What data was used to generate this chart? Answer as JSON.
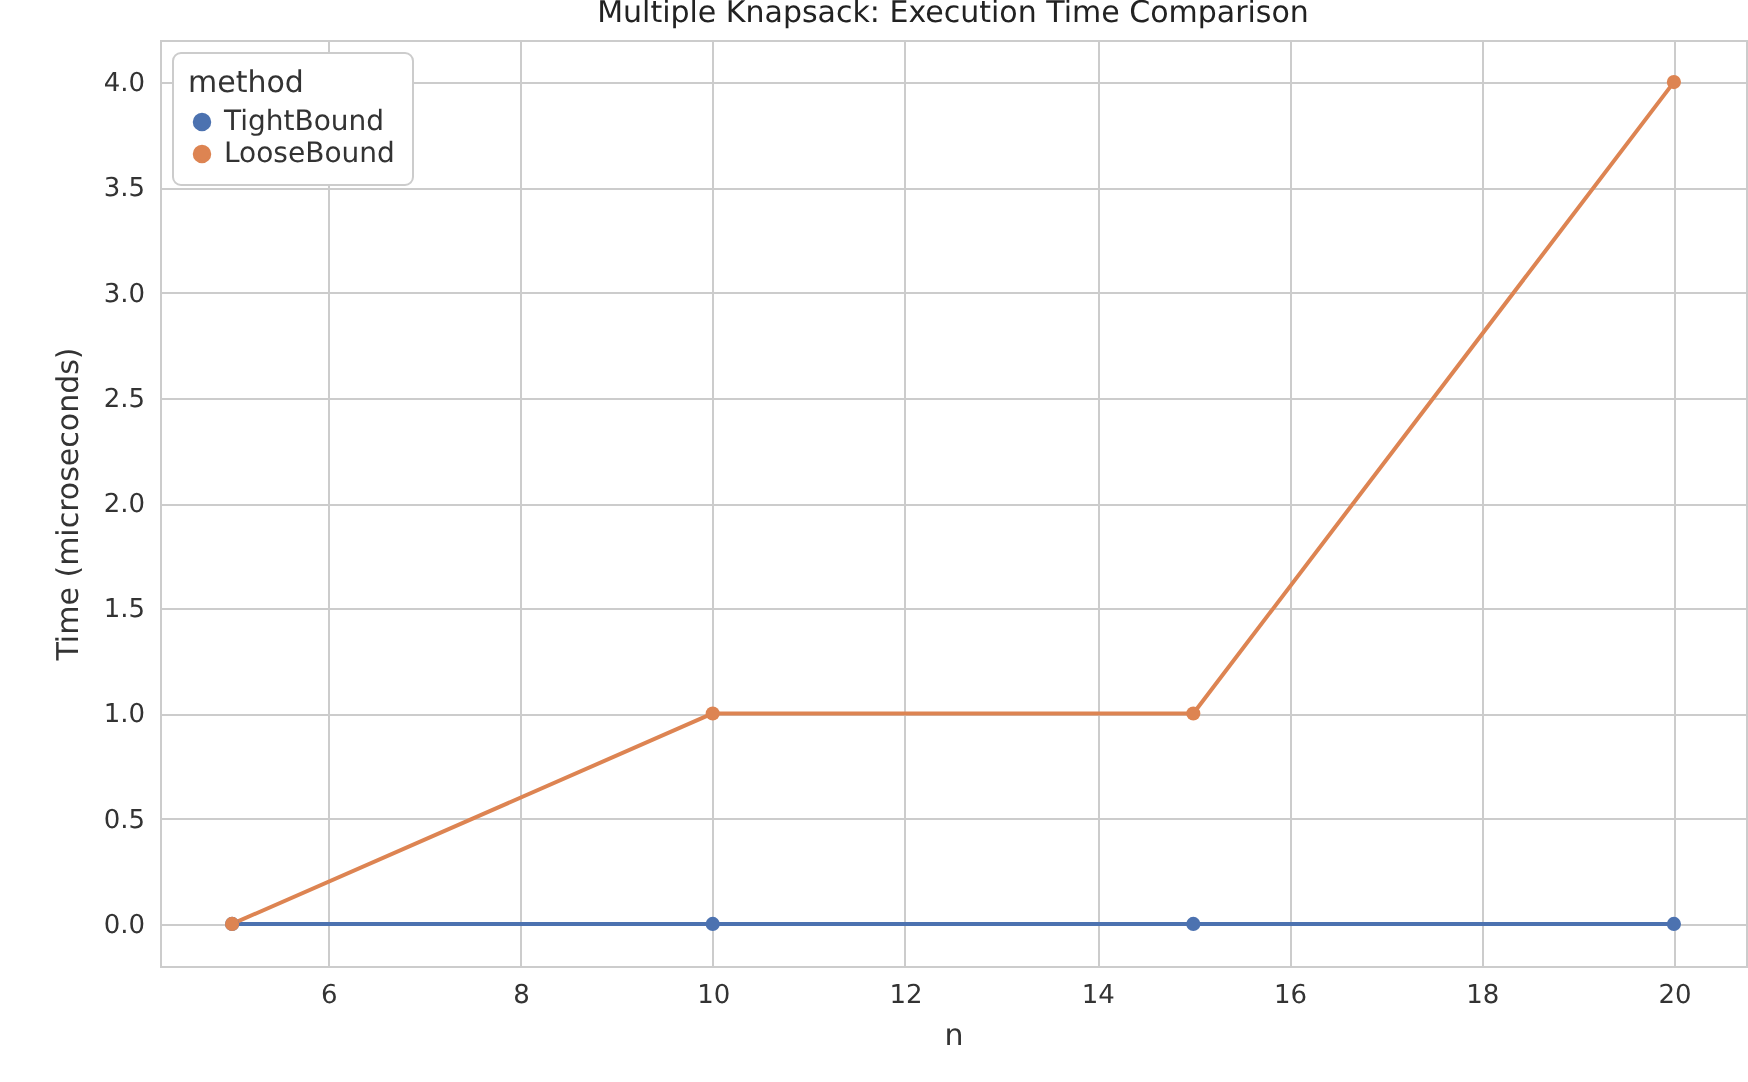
{
  "chart_data": {
    "type": "line",
    "title": "Multiple Knapsack: Execution Time Comparison",
    "xlabel": "n",
    "ylabel": "Time (microseconds)",
    "legend_title": "method",
    "x": [
      5,
      10,
      15,
      20
    ],
    "series": [
      {
        "name": "TightBound",
        "color": "#4c72b0",
        "values": [
          0,
          0,
          0,
          0
        ]
      },
      {
        "name": "LooseBound",
        "color": "#dd8452",
        "values": [
          0,
          1,
          1,
          4
        ]
      }
    ],
    "xlim": [
      4.25,
      20.75
    ],
    "xticks": [
      6,
      8,
      10,
      12,
      14,
      16,
      18,
      20
    ],
    "ylim": [
      -0.2,
      4.2
    ],
    "yticks": [
      {
        "value": 0,
        "label": "0.0"
      },
      {
        "value": 0.5,
        "label": "0.5"
      },
      {
        "value": 1,
        "label": "1.0"
      },
      {
        "value": 1.5,
        "label": "1.5"
      },
      {
        "value": 2,
        "label": "2.0"
      },
      {
        "value": 2.5,
        "label": "2.5"
      },
      {
        "value": 3,
        "label": "3.0"
      },
      {
        "value": 3.5,
        "label": "3.5"
      },
      {
        "value": 4,
        "label": "4.0"
      }
    ],
    "grid": true,
    "legend": "top left",
    "marker": "circle",
    "line_style": "solid"
  }
}
